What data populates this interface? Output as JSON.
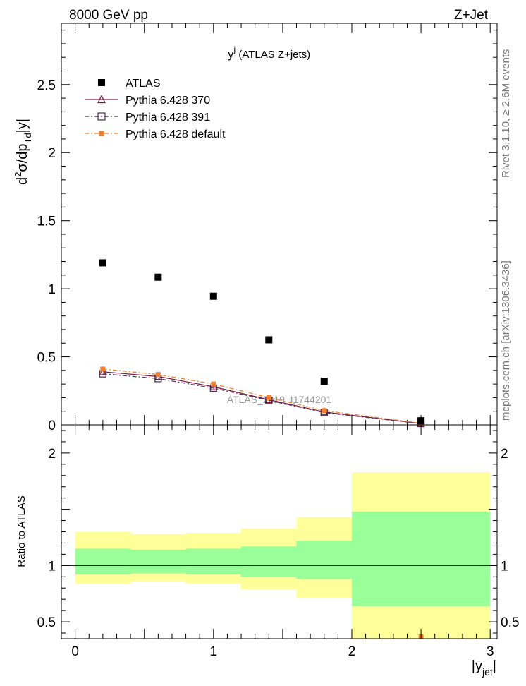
{
  "header": {
    "energy_label": "8000 GeV pp",
    "process_label": "Z+Jet"
  },
  "side_labels": {
    "rivet": "Rivet 3.1.10, ≥ 2.6M events",
    "mcplots": "mcplots.cern.ch [arXiv:1306.3436]"
  },
  "chart_data": [
    {
      "type": "scatter",
      "title": "y^j (ATLAS Z+jets)",
      "title_main": "y",
      "title_sup": "j",
      "title_rest": " (ATLAS Z+jets)",
      "ylabel": "d²σ/dp_Td|y|",
      "xlim": [
        -0.1,
        3.05
      ],
      "ylim": [
        0,
        2.95
      ],
      "y_ticks": [
        {
          "v": 0,
          "label": "0"
        },
        {
          "v": 0.5,
          "label": "0.5"
        },
        {
          "v": 1,
          "label": "1"
        },
        {
          "v": 1.5,
          "label": "1.5"
        },
        {
          "v": 2,
          "label": "2"
        },
        {
          "v": 2.5,
          "label": "2.5"
        }
      ],
      "watermark": "ATLAS_2019_I1744201",
      "legend_position": "top-left",
      "series": [
        {
          "name": "ATLAS",
          "marker": "filled-square",
          "color": "#000000",
          "x": [
            0.2,
            0.6,
            1.0,
            1.4,
            1.8,
            2.5
          ],
          "y": [
            1.19,
            1.085,
            0.945,
            0.625,
            0.32,
            0.03
          ]
        },
        {
          "name": "Pythia 6.428 370",
          "marker": "open-triangle",
          "color": "#7a1a3a",
          "line": "solid",
          "x": [
            0.2,
            0.6,
            1.0,
            1.4,
            1.8,
            2.5
          ],
          "y": [
            0.39,
            0.355,
            0.28,
            0.185,
            0.095,
            0.01
          ]
        },
        {
          "name": "Pythia 6.428 391",
          "marker": "open-square",
          "color": "#4a2a55",
          "line": "dashdot",
          "x": [
            0.2,
            0.6,
            1.0,
            1.4,
            1.8,
            2.5
          ],
          "y": [
            0.375,
            0.34,
            0.27,
            0.18,
            0.09,
            0.01
          ]
        },
        {
          "name": "Pythia 6.428 default",
          "marker": "filled-square",
          "color": "#f08030",
          "line": "dashdot",
          "x": [
            0.2,
            0.6,
            1.0,
            1.4,
            1.8,
            2.5
          ],
          "y": [
            0.41,
            0.37,
            0.3,
            0.2,
            0.105,
            0.012
          ]
        }
      ]
    },
    {
      "type": "area",
      "ylabel": "Ratio to ATLAS",
      "xlabel": "|y_jet|",
      "xlim": [
        -0.1,
        3.05
      ],
      "ylim": [
        0.35,
        2.25
      ],
      "x_ticks": [
        {
          "v": 0,
          "label": "0"
        },
        {
          "v": 1,
          "label": "1"
        },
        {
          "v": 2,
          "label": "2"
        },
        {
          "v": 3,
          "label": "3"
        }
      ],
      "y_ticks": [
        {
          "v": 0.5,
          "label": "0.5"
        },
        {
          "v": 1,
          "label": "1"
        },
        {
          "v": 2,
          "label": "2"
        }
      ],
      "reference_line": 1,
      "bins": [
        0,
        0.4,
        0.8,
        1.2,
        1.6,
        2.0,
        3.0
      ],
      "band_inner_lo": [
        0.92,
        0.93,
        0.92,
        0.9,
        0.88,
        0.64
      ],
      "band_inner_hi": [
        1.15,
        1.14,
        1.15,
        1.17,
        1.22,
        1.48
      ],
      "band_outer_lo": [
        0.84,
        0.86,
        0.84,
        0.79,
        0.71,
        0.35
      ],
      "band_outer_hi": [
        1.3,
        1.28,
        1.29,
        1.33,
        1.43,
        1.83
      ],
      "band_colors": {
        "outer": "#ffff99",
        "inner": "#99ff99"
      },
      "offscale_point": {
        "x": 2.5,
        "color": "#f08030"
      }
    }
  ]
}
